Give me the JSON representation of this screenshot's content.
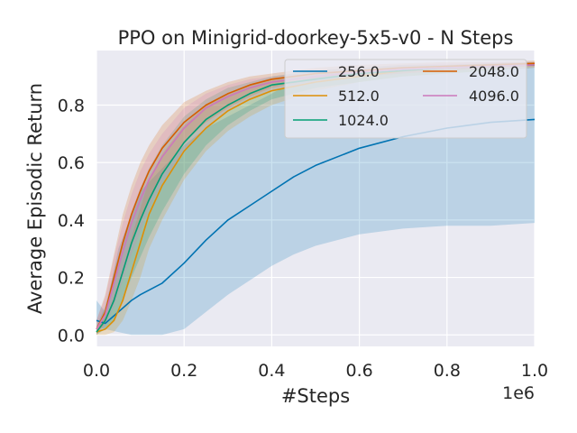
{
  "chart_data": {
    "type": "line",
    "title": "PPO on Minigrid-doorkey-5x5-v0 - N Steps",
    "xlabel": "#Steps",
    "ylabel": "Average Episodic Return",
    "x_offset_label": "1e6",
    "xlim": [
      0.0,
      1.0
    ],
    "ylim": [
      -0.04,
      0.99
    ],
    "xticks": [
      "0.0",
      "0.2",
      "0.4",
      "0.6",
      "0.8",
      "1.0"
    ],
    "yticks": [
      "0.0",
      "0.2",
      "0.4",
      "0.6",
      "0.8"
    ],
    "grid": true,
    "legend_position": "top-right",
    "series": [
      {
        "name": "256.0",
        "color": "#0173b2",
        "x": [
          0.0,
          0.02,
          0.05,
          0.08,
          0.1,
          0.15,
          0.2,
          0.25,
          0.3,
          0.35,
          0.4,
          0.45,
          0.5,
          0.6,
          0.7,
          0.8,
          0.9,
          1.0
        ],
        "mean": [
          0.05,
          0.04,
          0.08,
          0.12,
          0.14,
          0.18,
          0.25,
          0.33,
          0.4,
          0.45,
          0.5,
          0.55,
          0.59,
          0.65,
          0.69,
          0.72,
          0.74,
          0.75
        ],
        "lower": [
          0.03,
          0.02,
          0.01,
          0.0,
          0.0,
          0.0,
          0.02,
          0.08,
          0.14,
          0.19,
          0.24,
          0.28,
          0.31,
          0.35,
          0.37,
          0.38,
          0.38,
          0.39
        ],
        "upper": [
          0.12,
          0.08,
          0.3,
          0.42,
          0.5,
          0.58,
          0.66,
          0.72,
          0.76,
          0.8,
          0.84,
          0.88,
          0.9,
          0.92,
          0.93,
          0.93,
          0.93,
          0.93
        ]
      },
      {
        "name": "512.0",
        "color": "#de8f05",
        "x": [
          0.0,
          0.02,
          0.04,
          0.06,
          0.08,
          0.1,
          0.12,
          0.15,
          0.2,
          0.25,
          0.3,
          0.35,
          0.4,
          0.5,
          0.6,
          0.7,
          0.8,
          0.9,
          1.0
        ],
        "mean": [
          0.01,
          0.02,
          0.05,
          0.12,
          0.22,
          0.32,
          0.42,
          0.52,
          0.64,
          0.72,
          0.78,
          0.82,
          0.85,
          0.88,
          0.9,
          0.92,
          0.93,
          0.935,
          0.94
        ],
        "lower": [
          0.0,
          0.0,
          0.01,
          0.05,
          0.12,
          0.2,
          0.3,
          0.4,
          0.54,
          0.64,
          0.71,
          0.76,
          0.8,
          0.85,
          0.88,
          0.9,
          0.91,
          0.92,
          0.93
        ],
        "upper": [
          0.03,
          0.06,
          0.12,
          0.22,
          0.34,
          0.44,
          0.54,
          0.63,
          0.73,
          0.8,
          0.84,
          0.87,
          0.89,
          0.91,
          0.92,
          0.93,
          0.94,
          0.945,
          0.95
        ]
      },
      {
        "name": "1024.0",
        "color": "#029e73",
        "x": [
          0.0,
          0.02,
          0.04,
          0.06,
          0.08,
          0.1,
          0.12,
          0.15,
          0.2,
          0.25,
          0.3,
          0.35,
          0.4,
          0.5,
          0.6,
          0.7,
          0.8,
          0.9,
          1.0
        ],
        "mean": [
          0.01,
          0.05,
          0.12,
          0.22,
          0.32,
          0.4,
          0.47,
          0.56,
          0.67,
          0.75,
          0.8,
          0.84,
          0.87,
          0.89,
          0.91,
          0.92,
          0.93,
          0.935,
          0.94
        ],
        "lower": [
          0.0,
          0.02,
          0.05,
          0.12,
          0.2,
          0.27,
          0.34,
          0.43,
          0.56,
          0.66,
          0.73,
          0.78,
          0.82,
          0.86,
          0.88,
          0.9,
          0.91,
          0.92,
          0.93
        ],
        "upper": [
          0.03,
          0.1,
          0.22,
          0.33,
          0.43,
          0.51,
          0.58,
          0.66,
          0.76,
          0.82,
          0.86,
          0.88,
          0.9,
          0.92,
          0.93,
          0.94,
          0.94,
          0.945,
          0.95
        ]
      },
      {
        "name": "2048.0",
        "color": "#d55e00",
        "x": [
          0.0,
          0.02,
          0.04,
          0.06,
          0.08,
          0.1,
          0.12,
          0.15,
          0.2,
          0.25,
          0.3,
          0.35,
          0.4,
          0.5,
          0.6,
          0.7,
          0.8,
          0.9,
          1.0
        ],
        "mean": [
          0.02,
          0.08,
          0.2,
          0.32,
          0.42,
          0.5,
          0.57,
          0.65,
          0.74,
          0.8,
          0.84,
          0.87,
          0.89,
          0.91,
          0.92,
          0.93,
          0.935,
          0.94,
          0.945
        ],
        "lower": [
          0.0,
          0.04,
          0.12,
          0.22,
          0.32,
          0.4,
          0.47,
          0.56,
          0.67,
          0.74,
          0.79,
          0.83,
          0.86,
          0.89,
          0.9,
          0.91,
          0.92,
          0.93,
          0.935
        ],
        "upper": [
          0.05,
          0.14,
          0.28,
          0.42,
          0.52,
          0.6,
          0.66,
          0.73,
          0.81,
          0.85,
          0.88,
          0.9,
          0.91,
          0.93,
          0.94,
          0.945,
          0.95,
          0.95,
          0.955
        ]
      },
      {
        "name": "4096.0",
        "color": "#cc78bc",
        "x": [
          0.0,
          0.02,
          0.04,
          0.06,
          0.08,
          0.1,
          0.12,
          0.15,
          0.2,
          0.25,
          0.3,
          0.35,
          0.4,
          0.5,
          0.6,
          0.7,
          0.8,
          0.9,
          1.0
        ],
        "mean": [
          0.02,
          0.07,
          0.18,
          0.29,
          0.39,
          0.47,
          0.54,
          0.62,
          0.72,
          0.79,
          0.83,
          0.86,
          0.88,
          0.9,
          0.915,
          0.925,
          0.93,
          0.935,
          0.94
        ],
        "lower": [
          0.0,
          0.03,
          0.1,
          0.19,
          0.28,
          0.36,
          0.44,
          0.53,
          0.64,
          0.72,
          0.78,
          0.82,
          0.85,
          0.88,
          0.9,
          0.91,
          0.92,
          0.925,
          0.93
        ],
        "upper": [
          0.05,
          0.13,
          0.27,
          0.39,
          0.49,
          0.57,
          0.63,
          0.7,
          0.79,
          0.84,
          0.87,
          0.89,
          0.9,
          0.92,
          0.93,
          0.94,
          0.945,
          0.95,
          0.95
        ]
      }
    ]
  }
}
